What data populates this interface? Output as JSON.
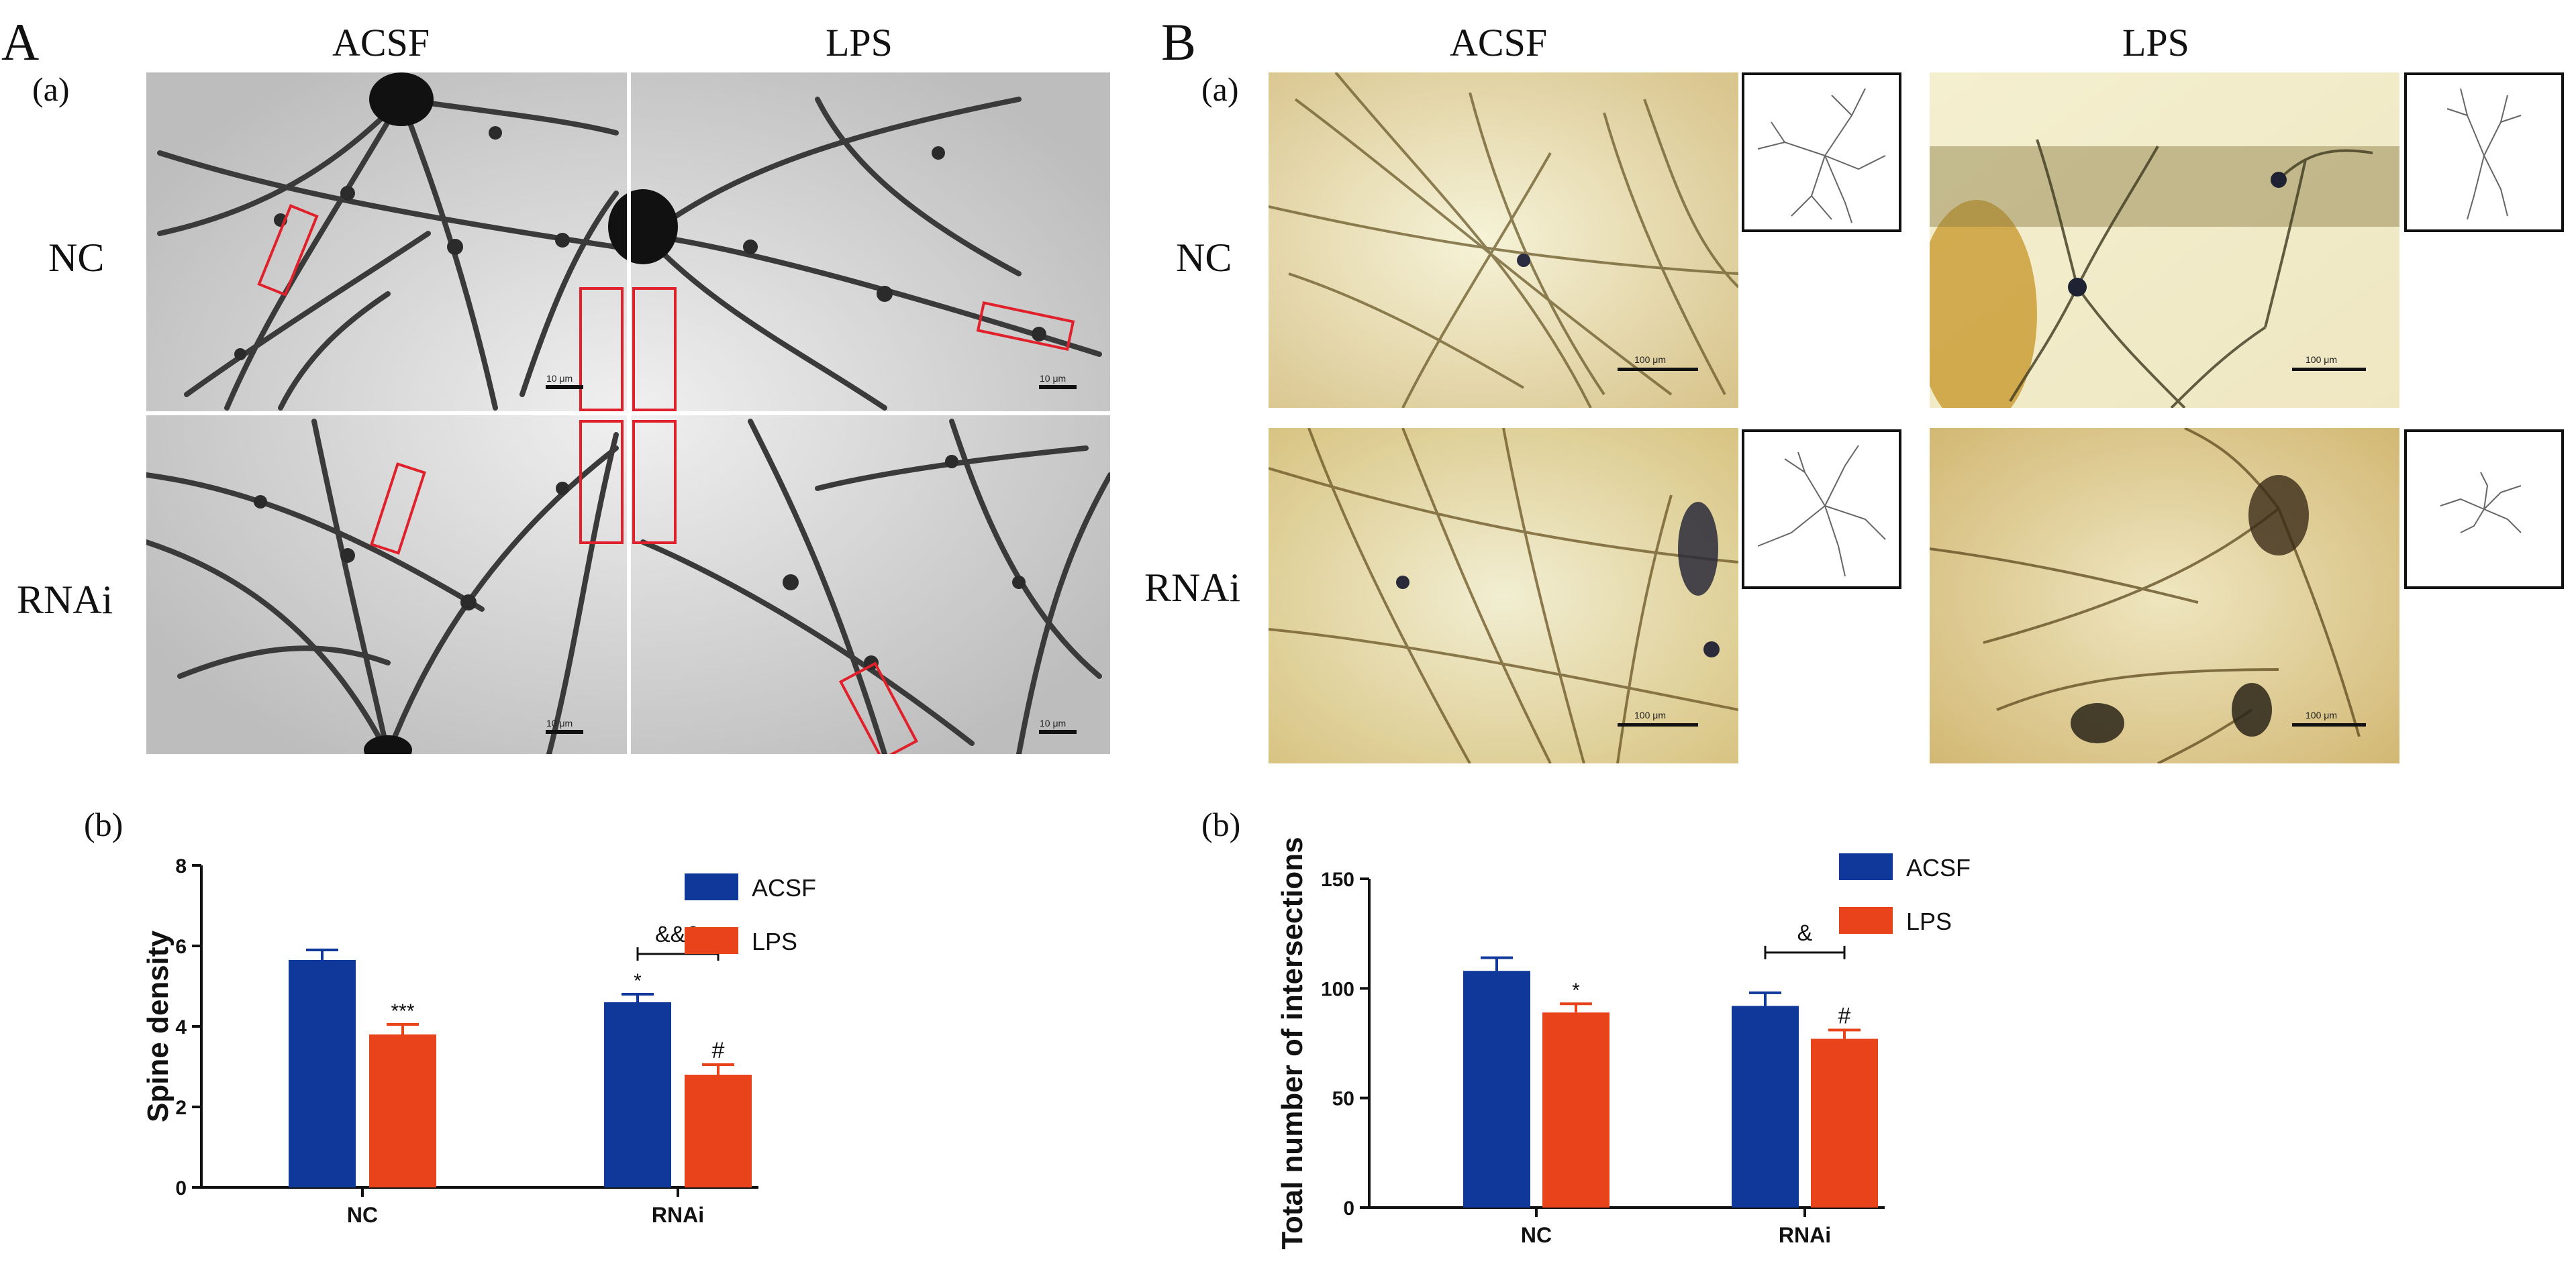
{
  "panelA": {
    "letter": "A",
    "sub_a": "(a)",
    "sub_b": "(b)",
    "col_headers": [
      "ACSF",
      "LPS"
    ],
    "row_headers": [
      "NC",
      "RNAi"
    ],
    "scale_labels": [
      "10 μm",
      "10 μm",
      "10 μm",
      "10 μm"
    ]
  },
  "panelB": {
    "letter": "B",
    "sub_a": "(a)",
    "sub_b": "(b)",
    "col_headers": [
      "ACSF",
      "LPS"
    ],
    "row_headers": [
      "NC",
      "RNAi"
    ],
    "scale_labels": [
      "100 μm",
      "100 μm",
      "100 μm",
      "100 μm"
    ]
  },
  "colors": {
    "acsf": "#10389a",
    "lps": "#e8431b",
    "red_box": "#e0202a"
  },
  "chart_data": [
    {
      "type": "bar",
      "id": "spine-density",
      "categories": [
        "NC",
        "RNAi"
      ],
      "series": [
        {
          "name": "ACSF",
          "values": [
            5.65,
            4.6
          ],
          "errors": [
            0.25,
            0.2
          ],
          "marks": [
            "",
            "*"
          ]
        },
        {
          "name": "LPS",
          "values": [
            3.8,
            2.8
          ],
          "errors": [
            0.25,
            0.25
          ],
          "marks": [
            "***",
            "#"
          ]
        }
      ],
      "ylabel": "Spine density",
      "xlabel": "",
      "ylim": [
        0,
        8
      ],
      "yticks": [
        0,
        2,
        4,
        6,
        8
      ],
      "bracket": {
        "category": "RNAi",
        "label": "&&&"
      },
      "legend": "top-right"
    },
    {
      "type": "bar",
      "id": "total-intersections",
      "categories": [
        "NC",
        "RNAi"
      ],
      "series": [
        {
          "name": "ACSF",
          "values": [
            108,
            92
          ],
          "errors": [
            6,
            6
          ],
          "marks": [
            "",
            ""
          ]
        },
        {
          "name": "LPS",
          "values": [
            89,
            77
          ],
          "errors": [
            4,
            4
          ],
          "marks": [
            "*",
            "#"
          ]
        }
      ],
      "ylabel": "Total number of intersections",
      "xlabel": "",
      "ylim": [
        0,
        150
      ],
      "yticks": [
        0,
        50,
        100,
        150
      ],
      "bracket": {
        "category": "RNAi",
        "label": "&"
      },
      "legend": "top-right"
    }
  ]
}
